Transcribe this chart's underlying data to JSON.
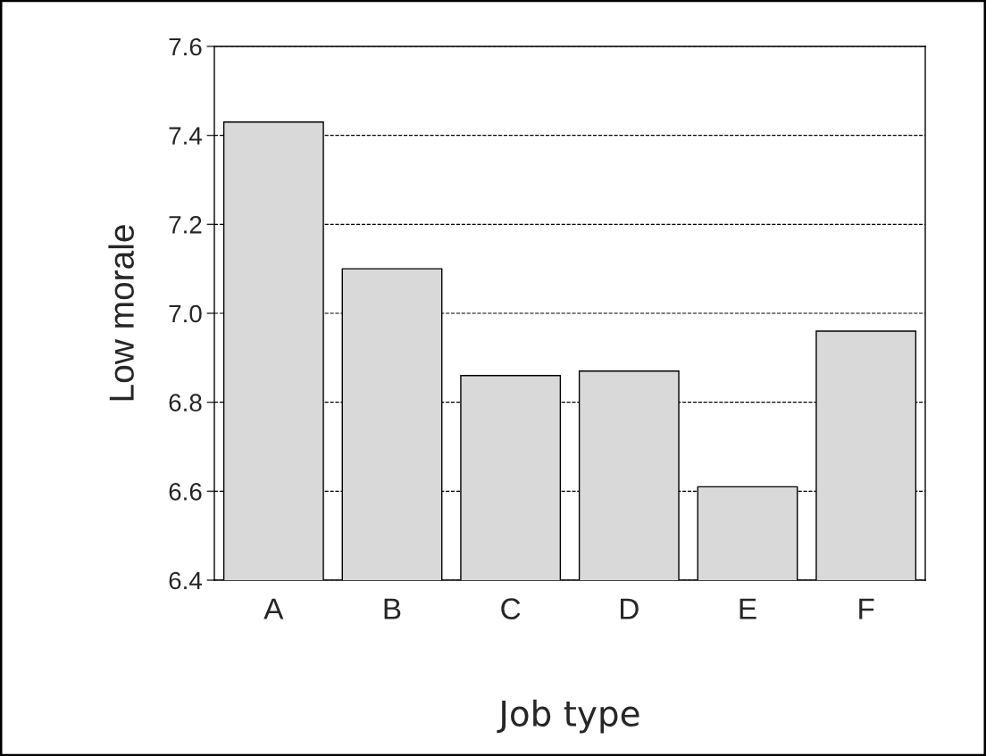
{
  "chart_data": {
    "type": "bar",
    "xlabel": "Job type",
    "ylabel": "Low morale",
    "categories": [
      "A",
      "B",
      "C",
      "D",
      "E",
      "F"
    ],
    "values": [
      7.43,
      7.1,
      6.86,
      6.87,
      6.61,
      6.96
    ],
    "color": "#d9d9d9",
    "ylim": [
      6.4,
      7.6
    ],
    "yticks": [
      6.4,
      6.6,
      6.8,
      {
        "value": 7,
        "label": "7.0"
      },
      7.2,
      7.4,
      7.6
    ],
    "grid": "y",
    "line_style": "dashed"
  }
}
